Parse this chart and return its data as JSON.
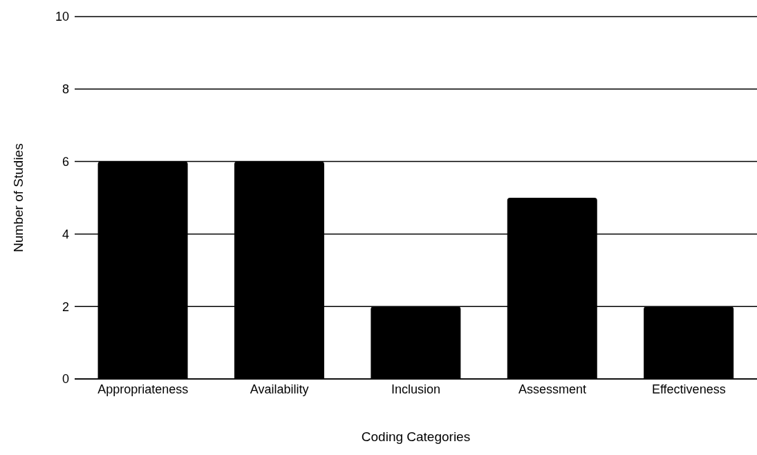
{
  "chart_data": {
    "type": "bar",
    "xlabel": "Coding Categories",
    "ylabel": "Number of Studies",
    "categories": [
      "Appropriateness",
      "Availability",
      "Inclusion",
      "Assessment",
      "Effectiveness"
    ],
    "values": [
      6,
      6,
      2,
      5,
      2
    ],
    "color": "#000000",
    "ylim": [
      0,
      10
    ],
    "yticks": [
      0,
      2,
      4,
      6,
      8,
      10
    ],
    "grid": "y",
    "legend": false
  }
}
